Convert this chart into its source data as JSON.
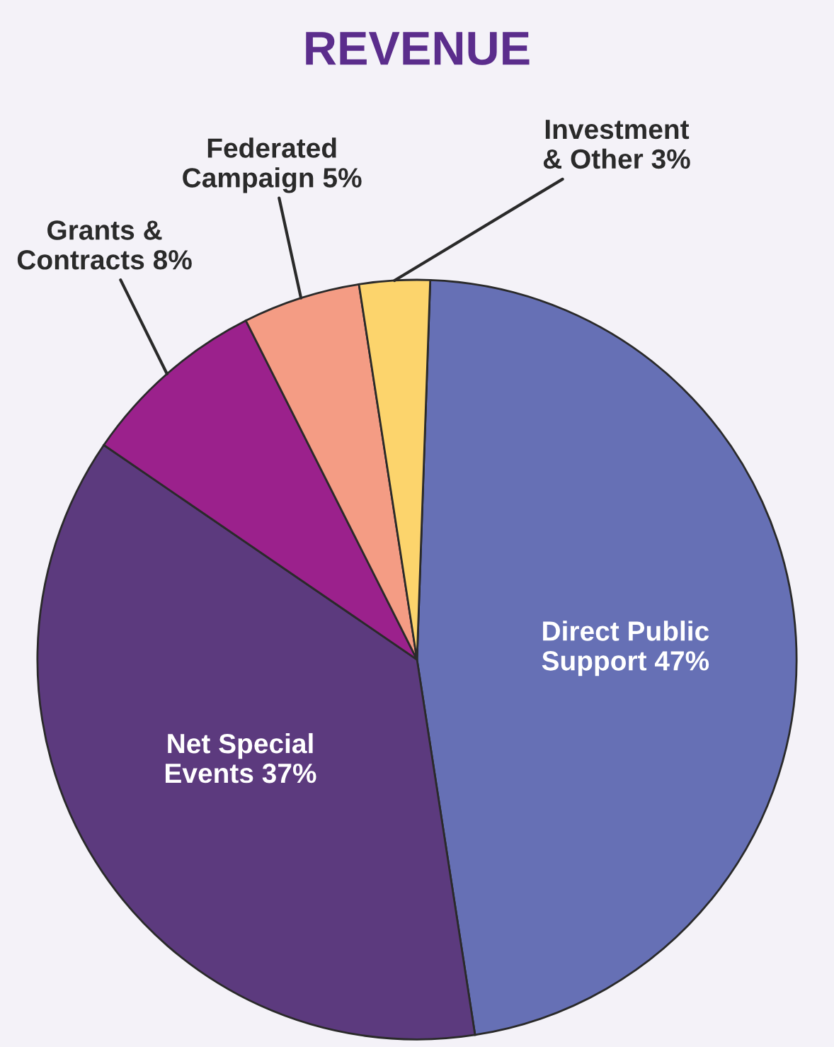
{
  "chart_data": {
    "type": "pie",
    "title": "REVENUE",
    "categories": [
      "Direct Public\nSupport",
      "Net Special\nEvents",
      "Grants &\nContracts",
      "Federated\nCampaign",
      "Investment\n& Other"
    ],
    "values": [
      47,
      37,
      8,
      5,
      3
    ],
    "value_labels": [
      "47%",
      "37%",
      "8%",
      "5%",
      "3%"
    ],
    "colors": [
      "#6670b5",
      "#5c3a7e",
      "#9b218c",
      "#f49c84",
      "#fcd46c"
    ]
  }
}
